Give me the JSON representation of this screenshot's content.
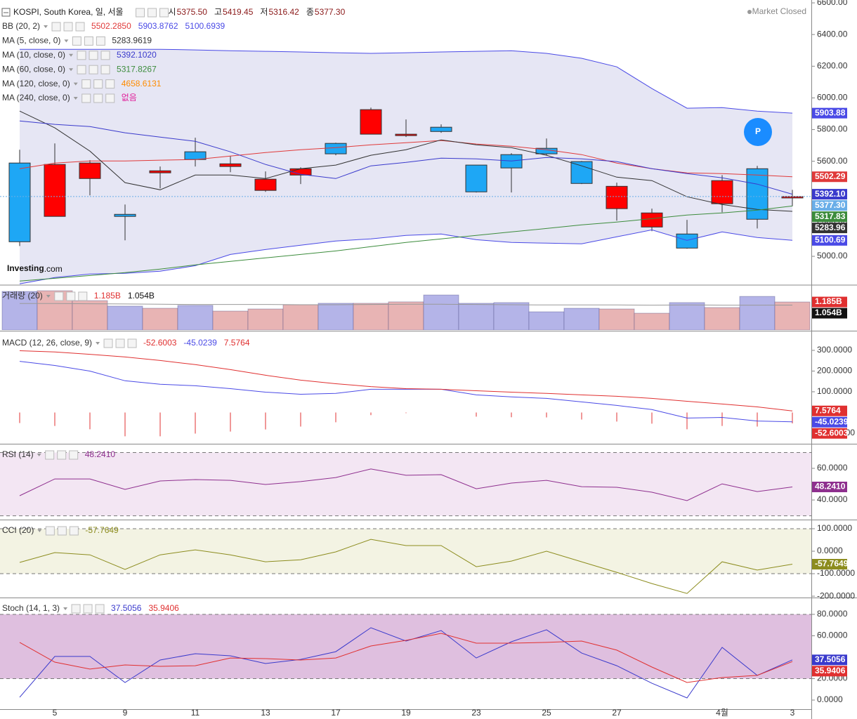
{
  "chart_data": [
    {
      "type": "candlestick",
      "title": "KOSPI, South Korea, 일, 서울",
      "ohlc_labels": [
        {
          "label": "시",
          "value": "5375.50"
        },
        {
          "label": "고",
          "value": "5419.45"
        },
        {
          "label": "저",
          "value": "5316.42"
        },
        {
          "label": "종",
          "value": "5377.30"
        }
      ],
      "value_color": "#8b1a1a",
      "status": "Market Closed",
      "logo": {
        "bold": "Investing",
        "light": ".com"
      },
      "button": "P",
      "categories": [
        null,
        "5",
        null,
        "9",
        null,
        "11",
        null,
        "13",
        null,
        "17",
        null,
        "19",
        null,
        "23",
        null,
        "25",
        null,
        "27",
        null,
        null,
        "4월",
        null,
        "3"
      ],
      "open": [
        5589,
        5252,
        5491,
        5265,
        5527,
        5660,
        5567,
        5416,
        5513,
        5713,
        5771,
        5762,
        5815,
        5576,
        5642,
        5682,
        5598,
        5301,
        5185,
        5141,
        5332,
        5553,
        5375.5
      ],
      "high": [
        5673,
        5713,
        5607,
        5327,
        5567,
        5749,
        5633,
        5536,
        5562,
        5717,
        5939,
        5864,
        5833,
        5576,
        5651,
        5744,
        5602,
        5465,
        5301,
        5230,
        5513,
        5571,
        5419.45
      ],
      "low": [
        5065,
        5252,
        5385,
        5101,
        5429,
        5567,
        5531,
        5407,
        5456,
        5638,
        5771,
        5753,
        5780,
        5403,
        5403,
        5638,
        5456,
        5225,
        5159,
        5048,
        5278,
        5176,
        5316.42
      ],
      "close": [
        5092,
        5580,
        5589,
        5252,
        5540,
        5611,
        5584,
        5487,
        5553,
        5647,
        5926,
        5771,
        5788,
        5407,
        5558,
        5647,
        5460,
        5442,
        5274,
        5052,
        5478,
        5234,
        5377.3
      ],
      "up_color": "#ff0000",
      "down_color": "#1ea7f5",
      "last_label": "5377.30",
      "last_color": "#6aaee8",
      "ylim": [
        4823,
        6618
      ],
      "yticks": [
        {
          "value": 5000,
          "label": "5000.00"
        },
        {
          "value": 5200,
          "label": "5200.00"
        },
        {
          "value": 5400,
          "label": "5400.00"
        },
        {
          "value": 5600,
          "label": "5600.00"
        },
        {
          "value": 5800,
          "label": "5800.00"
        },
        {
          "value": 6000,
          "label": "6000.00"
        },
        {
          "value": 6200,
          "label": "6200.00"
        },
        {
          "value": 6400,
          "label": "6400.00"
        },
        {
          "value": 6600,
          "label": "6600.00"
        }
      ],
      "indicators": [
        {
          "name": "BB (20, 2)",
          "fill": "#e6e6f4",
          "lines": [
            {
              "color": "#e03a3a",
              "legend_label": "5502.2850",
              "axis_label": "5502.29",
              "values": [
                5553,
                5589,
                5602,
                5602,
                5607,
                5611,
                5633,
                5655,
                5673,
                5686,
                5704,
                5717,
                5731,
                5709,
                5695,
                5673,
                5642,
                5589,
                5553,
                5527,
                5522,
                5513,
                5502.285
              ]
            },
            {
              "color": "#4a4ae6",
              "legend_label": "5903.8762",
              "axis_label": "5903.88",
              "values": [
                6307,
                6307,
                6307,
                6307,
                6307,
                6303,
                6298,
                6294,
                6290,
                6285,
                6281,
                6285,
                6290,
                6294,
                6298,
                6281,
                6250,
                6196,
                6059,
                5935,
                5939,
                5917,
                5903.8762
              ]
            },
            {
              "color": "#4a4ae6",
              "legend_label": "5100.6939",
              "axis_label": "5100.69",
              "values": [
                4826,
                4866,
                4888,
                4893,
                4906,
                4941,
                5012,
                5043,
                5070,
                5097,
                5110,
                5132,
                5141,
                5105,
                5088,
                5083,
                5079,
                5123,
                5167,
                5101,
                5154,
                5119,
                5100.6939
              ]
            }
          ]
        },
        {
          "name": "MA (5, close, 0)",
          "lines": [
            {
              "color": "#333333",
              "legend_label": "5283.9619",
              "axis_label": "5283.96",
              "values": [
                5917,
                5811,
                5664,
                5465,
                5420,
                5513,
                5513,
                5491,
                5553,
                5576,
                5638,
                5673,
                5735,
                5704,
                5686,
                5638,
                5571,
                5500,
                5478,
                5376,
                5327,
                5296,
                5283.9619
              ]
            }
          ]
        },
        {
          "name": "MA (10, close, 0)",
          "lines": [
            {
              "color": "#3a3acc",
              "legend_label": "5392.1020",
              "axis_label": "5392.10",
              "values": [
                5855,
                5833,
                5819,
                5780,
                5753,
                5726,
                5660,
                5580,
                5518,
                5491,
                5571,
                5593,
                5620,
                5615,
                5602,
                5624,
                5615,
                5598,
                5553,
                5522,
                5496,
                5456,
                5392.102
              ]
            }
          ]
        },
        {
          "name": "MA (60, close, 0)",
          "lines": [
            {
              "color": "#3c8c3c",
              "legend_label": "5317.8267",
              "axis_label": "5317.83",
              "values": [
                4844,
                4861,
                4879,
                4897,
                4919,
                4946,
                4968,
                4990,
                5012,
                5034,
                5061,
                5088,
                5110,
                5132,
                5154,
                5176,
                5199,
                5216,
                5238,
                5261,
                5274,
                5292,
                5317.8267
              ]
            }
          ]
        },
        {
          "name": "MA (120, close, 0)",
          "lines": [
            {
              "color": "#ff8c00",
              "legend_label": "4658.6131"
            }
          ]
        },
        {
          "name": "MA (240, close, 0)",
          "lines": [
            {
              "color": "#e0209a",
              "legend_label": "없음"
            }
          ]
        }
      ]
    },
    {
      "type": "bar",
      "title": "거래량 (20)",
      "ylim": [
        0,
        1.87
      ],
      "series": [
        {
          "type": "bar",
          "color": "#e03030",
          "colors": [
            "#b4b4e8",
            "#e8b4b4",
            "#e8b4b4",
            "#b4b4e8",
            "#e8b4b4",
            "#b4b4e8",
            "#e8b4b4",
            "#e8b4b4",
            "#e8b4b4",
            "#b4b4e8",
            "#e8b4b4",
            "#e8b4b4",
            "#b4b4e8",
            "#b4b4e8",
            "#b4b4e8",
            "#b4b4e8",
            "#b4b4e8",
            "#e8b4b4",
            "#e8b4b4",
            "#b4b4e8",
            "#e8b4b4",
            "#b4b4e8",
            "#e8b4b4"
          ],
          "values": [
            1.63,
            1.66,
            1.24,
            1.01,
            0.92,
            1.04,
            0.8,
            0.89,
            1.07,
            1.13,
            1.13,
            1.19,
            1.48,
            1.13,
            1.16,
            0.77,
            0.92,
            0.89,
            0.71,
            1.16,
            0.95,
            1.42,
            1.185
          ],
          "label": "1.185B",
          "box_color": "#e03030"
        },
        {
          "type": "line",
          "color": "#999999",
          "values": [
            1.12,
            1.12,
            1.11,
            1.1,
            1.09,
            1.08,
            1.08,
            1.08,
            1.07,
            1.07,
            1.08,
            1.09,
            1.09,
            1.08,
            1.07,
            1.06,
            1.06,
            1.06,
            1.05,
            1.06,
            1.05,
            1.05,
            1.054
          ],
          "label": "1.054B",
          "box_color": "#111111",
          "legend_color": "#111111"
        }
      ]
    },
    {
      "type": "line",
      "title": "MACD (12, 26, close, 9)",
      "ylim": [
        -151,
        388
      ],
      "yticks": [
        {
          "value": 300,
          "label": "300.0000"
        },
        {
          "value": 200,
          "label": "200.0000"
        },
        {
          "value": 100,
          "label": "100.0000"
        },
        {
          "value": -100,
          "label": "-100.0000"
        }
      ],
      "series": [
        {
          "type": "bar",
          "color": "#e03030",
          "values": [
            -51,
            -65,
            -81,
            -115,
            -115,
            -102,
            -92,
            -82,
            -68,
            -47,
            -13,
            -3,
            0,
            -20,
            -23,
            -24,
            -34,
            -44,
            -54,
            -81,
            -65,
            -68,
            -52.6003
          ],
          "label": "-52.6003"
        },
        {
          "type": "line",
          "color": "#4a4ae6",
          "values": [
            247,
            227,
            200,
            153,
            136,
            129,
            115,
            98,
            88,
            92,
            112,
            112,
            112,
            85,
            75,
            68,
            51,
            34,
            14,
            -27,
            -24,
            -41,
            -45.0239
          ],
          "label": "-45.0239"
        },
        {
          "type": "line",
          "color": "#e03030",
          "values": [
            298,
            292,
            281,
            268,
            251,
            231,
            207,
            180,
            156,
            139,
            125,
            115,
            112,
            105,
            98,
            92,
            85,
            78,
            68,
            54,
            41,
            27,
            7.5764
          ],
          "label": "7.5764"
        }
      ]
    },
    {
      "type": "line",
      "title": "RSI (14)",
      "ylim": [
        27.6,
        75.1
      ],
      "band": [
        30,
        70
      ],
      "band_color": "#f3e6f3",
      "yticks": [
        {
          "value": 40,
          "label": "40.0000"
        },
        {
          "value": 60,
          "label": "60.0000"
        }
      ],
      "series": [
        {
          "type": "line",
          "color": "#8e2f8e",
          "values": [
            42.7,
            53.3,
            53.3,
            46.7,
            52,
            52.9,
            52.4,
            49.8,
            51.6,
            54.2,
            59.6,
            55.6,
            56,
            47.1,
            50.7,
            52.4,
            48.4,
            48,
            44.9,
            39.6,
            50.2,
            45.3,
            48.241
          ],
          "label": "48.2410"
        }
      ]
    },
    {
      "type": "line",
      "title": "CCI (20)",
      "ylim": [
        -206,
        137.5
      ],
      "band": [
        -100,
        100
      ],
      "band_color": "#f3f3e3",
      "yticks": [
        {
          "value": 100,
          "label": "100.0000"
        },
        {
          "value": 0,
          "label": "0.0000"
        },
        {
          "value": -100,
          "label": "-100.0000"
        },
        {
          "value": -200,
          "label": "-200.0000"
        }
      ],
      "series": [
        {
          "type": "line",
          "color": "#8c8c1e",
          "values": [
            -50,
            -6,
            -16,
            -81,
            -16,
            6,
            -16,
            -47,
            -38,
            -3,
            53,
            25,
            25,
            -69,
            -44,
            0,
            -47,
            -94,
            -144,
            -188,
            -47,
            -84,
            -57.7649
          ],
          "label": "-57.7649"
        }
      ]
    },
    {
      "type": "line",
      "title": "Stoch (14, 1, 3)",
      "ylim": [
        -8.5,
        94.4
      ],
      "band": [
        20,
        80
      ],
      "band_color": "#dfbfdf",
      "yticks": [
        {
          "value": 0,
          "label": "0.0000"
        },
        {
          "value": 20,
          "label": "20.0000"
        },
        {
          "value": 60,
          "label": "60.0000"
        },
        {
          "value": 80,
          "label": "80.0000"
        }
      ],
      "series": [
        {
          "type": "line",
          "color": "#3a3acc",
          "values": [
            2.6,
            40.7,
            40.7,
            16.4,
            37.4,
            43.3,
            41.3,
            34.1,
            38,
            45.2,
            67.5,
            55.1,
            64.9,
            39.3,
            54.4,
            65.6,
            43.9,
            32.1,
            15.7,
            2,
            49.2,
            23,
            37.5056
          ],
          "label": "37.5056"
        },
        {
          "type": "line",
          "color": "#e03030",
          "values": [
            53.8,
            35.4,
            28.9,
            32.8,
            31.5,
            32.1,
            39.3,
            38.7,
            37.4,
            39.3,
            50.5,
            55.7,
            62.3,
            53.1,
            53.1,
            53.8,
            55.1,
            46.6,
            30.8,
            16.4,
            21,
            23,
            35.9406
          ],
          "label": "35.9406"
        }
      ]
    }
  ]
}
